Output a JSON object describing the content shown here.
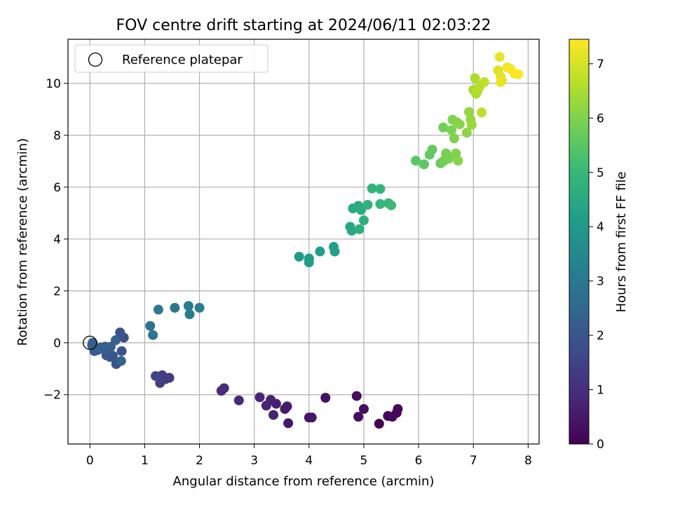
{
  "chart_data": {
    "type": "scatter",
    "title": "FOV centre drift starting at 2024/06/11 02:03:22",
    "xlabel": "Angular distance from reference (arcmin)",
    "ylabel": "Rotation from reference (arcmin)",
    "xlim": [
      -0.4,
      8.2
    ],
    "ylim": [
      -3.9,
      11.7
    ],
    "xticks": [
      "0",
      "1",
      "2",
      "3",
      "4",
      "5",
      "6",
      "7",
      "8"
    ],
    "yticks": [
      "−2",
      "0",
      "2",
      "4",
      "6",
      "8",
      "10"
    ],
    "grid": true,
    "legend": {
      "placement": "top-left",
      "entries": [
        "Reference platepar"
      ]
    },
    "reference_point": {
      "x": 0,
      "y": 0
    },
    "colorbar": {
      "label": "Hours from first FF file",
      "range": [
        0,
        7.45
      ],
      "ticks": [
        "0",
        "1",
        "2",
        "3",
        "4",
        "5",
        "6",
        "7"
      ],
      "colormap": "viridis"
    },
    "colormap_stops": [
      "#440154",
      "#482878",
      "#3e4989",
      "#31688e",
      "#26828e",
      "#1f9e89",
      "#35b779",
      "#6ece58",
      "#b5de2b",
      "#fde725"
    ],
    "series": [
      {
        "x": [
          5.28,
          5.44,
          5.52,
          5.6,
          5.62,
          4.9,
          5.0,
          4.87,
          4.3,
          4.0,
          4.05,
          3.62,
          3.56,
          3.6,
          3.4,
          3.3,
          3.35,
          3.22,
          3.1,
          2.72,
          2.45,
          2.4,
          1.45,
          1.32,
          1.38,
          1.28,
          1.2,
          0.62,
          0.55,
          0.58,
          0.48,
          0.42,
          0.37,
          0.32,
          0.3,
          0.26,
          0.2,
          0.14,
          0.08,
          0.04,
          0.05,
          0.18,
          0.28,
          0.38,
          0.47,
          0.57,
          1.1,
          1.15,
          1.25,
          1.55,
          1.8,
          1.82,
          2.0,
          3.82,
          4.0,
          4.0,
          4.2,
          4.45,
          4.47,
          4.75,
          4.78,
          4.8,
          4.9,
          4.95,
          4.92,
          5.0,
          5.07,
          5.15,
          5.3,
          5.3,
          5.45,
          5.5,
          5.95,
          6.1,
          6.2,
          6.25,
          6.4,
          6.45,
          6.45,
          6.48,
          6.5,
          6.55,
          6.6,
          6.62,
          6.65,
          6.68,
          6.7,
          6.72,
          6.75,
          6.88,
          6.92,
          6.95,
          6.97,
          7.0,
          7.03,
          7.05,
          7.08,
          7.12,
          7.15,
          7.2,
          7.45,
          7.5,
          7.48,
          7.52,
          7.5,
          7.62,
          7.68,
          7.75,
          7.82
        ],
        "y": [
          -3.12,
          -2.82,
          -2.85,
          -2.7,
          -2.55,
          -2.85,
          -2.55,
          -2.05,
          -2.12,
          -2.88,
          -2.88,
          -3.1,
          -2.55,
          -2.45,
          -2.35,
          -2.2,
          -2.78,
          -2.42,
          -2.1,
          -2.22,
          -1.75,
          -1.85,
          -1.35,
          -1.25,
          -1.4,
          -1.55,
          -1.28,
          0.2,
          0.4,
          -0.32,
          -0.82,
          -0.5,
          -0.55,
          -0.35,
          -0.48,
          -0.25,
          -0.18,
          -0.28,
          -0.32,
          -0.1,
          0.0,
          -0.2,
          -0.15,
          -0.15,
          0.1,
          -0.7,
          0.65,
          0.3,
          1.28,
          1.35,
          1.42,
          1.1,
          1.35,
          3.32,
          3.25,
          3.1,
          3.52,
          3.7,
          3.52,
          4.47,
          4.32,
          5.18,
          5.28,
          5.12,
          4.38,
          4.72,
          5.32,
          5.95,
          5.93,
          5.35,
          5.38,
          5.3,
          7.02,
          6.88,
          7.25,
          7.45,
          6.92,
          7.0,
          8.3,
          7.05,
          7.3,
          7.1,
          8.2,
          8.6,
          7.88,
          7.3,
          8.5,
          7.02,
          8.42,
          8.1,
          8.9,
          8.6,
          8.4,
          9.75,
          10.2,
          9.6,
          9.72,
          9.9,
          8.88,
          10.05,
          10.5,
          10.25,
          11.02,
          10.1,
          10.05,
          10.62,
          10.55,
          10.38,
          10.35
        ],
        "hours": [
          0.0,
          0.07,
          0.1,
          0.14,
          0.18,
          0.22,
          0.27,
          0.3,
          0.35,
          0.4,
          0.45,
          0.5,
          0.54,
          0.58,
          0.62,
          0.67,
          0.72,
          0.76,
          0.8,
          0.85,
          0.9,
          0.95,
          1.3,
          1.35,
          1.4,
          1.45,
          1.5,
          1.85,
          1.9,
          1.92,
          1.95,
          1.97,
          2.0,
          2.02,
          2.05,
          2.08,
          2.1,
          2.12,
          2.15,
          2.18,
          2.22,
          2.25,
          2.28,
          2.3,
          2.33,
          2.36,
          2.85,
          2.9,
          2.95,
          3.0,
          3.05,
          3.1,
          3.15,
          4.0,
          4.05,
          4.1,
          4.15,
          4.2,
          4.25,
          4.45,
          4.5,
          4.55,
          4.6,
          4.65,
          4.7,
          4.75,
          4.8,
          4.85,
          4.9,
          4.95,
          5.0,
          5.05,
          5.5,
          5.55,
          5.6,
          5.65,
          5.7,
          5.75,
          5.8,
          5.85,
          5.9,
          5.92,
          5.95,
          5.98,
          6.0,
          6.02,
          6.05,
          6.08,
          6.1,
          6.15,
          6.2,
          6.25,
          6.3,
          6.45,
          6.5,
          6.55,
          6.6,
          6.65,
          6.7,
          6.75,
          7.1,
          7.15,
          7.2,
          7.22,
          7.25,
          7.3,
          7.35,
          7.4,
          7.45
        ]
      }
    ]
  }
}
